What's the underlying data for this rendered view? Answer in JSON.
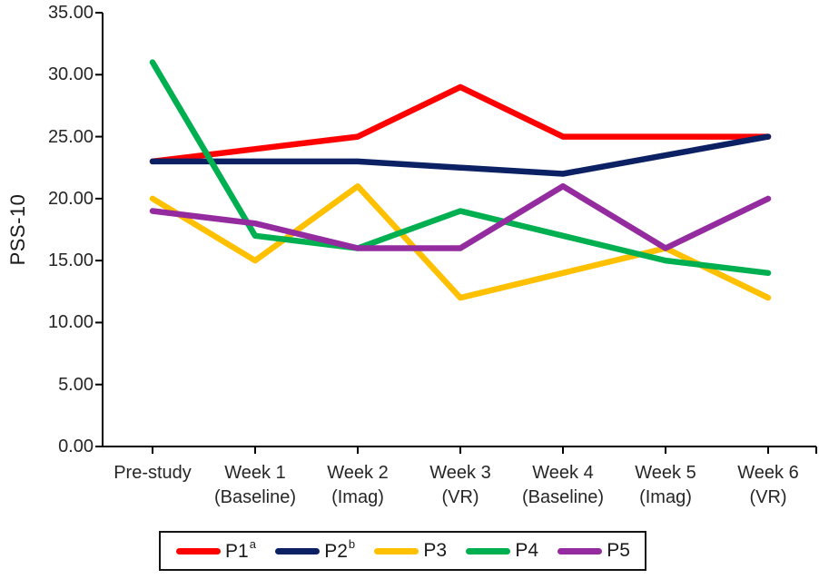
{
  "chart": {
    "y_axis_title": "PSS-10",
    "background_color": "#ffffff",
    "axis_color": "#000000",
    "text_color": "#262626"
  },
  "chart_data": {
    "type": "line",
    "title": "",
    "xlabel": "",
    "ylabel": "PSS-10",
    "ylim": [
      0,
      35
    ],
    "ytick_step": 5,
    "ytick_labels": [
      "0.00",
      "5.00",
      "10.00",
      "15.00",
      "20.00",
      "25.00",
      "30.00",
      "35.00"
    ],
    "categories": [
      "Pre-study",
      "Week 1 (Baseline)",
      "Week 2 (Imag)",
      "Week 3 (VR)",
      "Week 4 (Baseline)",
      "Week 5 (Imag)",
      "Week 6 (VR)"
    ],
    "category_lines": [
      [
        "Pre-study"
      ],
      [
        "Week 1",
        "(Baseline)"
      ],
      [
        "Week 2",
        "(Imag)"
      ],
      [
        "Week 3",
        "(VR)"
      ],
      [
        "Week 4",
        "(Baseline)"
      ],
      [
        "Week 5",
        "(Imag)"
      ],
      [
        "Week 6",
        "(VR)"
      ]
    ],
    "grid": false,
    "legend_position": "bottom",
    "series": [
      {
        "name": "P1",
        "superscript": "a",
        "color": "#FF0000",
        "values": [
          23,
          24,
          25,
          29,
          25,
          25,
          25
        ]
      },
      {
        "name": "P2",
        "superscript": "b",
        "color": "#0B2163",
        "values": [
          23,
          23,
          23,
          22.5,
          22,
          23.5,
          25
        ]
      },
      {
        "name": "P3",
        "superscript": "",
        "color": "#FFC000",
        "values": [
          20,
          15,
          21,
          12,
          14,
          16,
          12
        ]
      },
      {
        "name": "P4",
        "superscript": "",
        "color": "#00B050",
        "values": [
          31,
          17,
          16,
          19,
          17,
          15,
          14
        ]
      },
      {
        "name": "P5",
        "superscript": "",
        "color": "#942CA0",
        "values": [
          19,
          18,
          16,
          16,
          21,
          16,
          20
        ]
      }
    ]
  }
}
